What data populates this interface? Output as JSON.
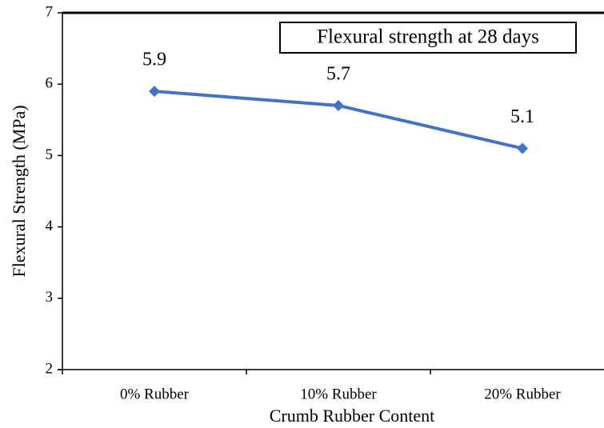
{
  "chart_data": {
    "type": "line",
    "x_label": "Crumb Rubber Content",
    "y_label": "Flexural Strength (MPa)",
    "categories": [
      "0% Rubber",
      "10% Rubber",
      "20% Rubber"
    ],
    "series": [
      {
        "name": "Flexural strength at 28 days",
        "color": "#4472c4",
        "values": [
          5.9,
          5.7,
          5.1
        ]
      }
    ],
    "ylim": [
      2,
      7
    ],
    "yticks": [
      2,
      3,
      4,
      5,
      6,
      7
    ],
    "legend": "upper right",
    "data_labels": true
  }
}
